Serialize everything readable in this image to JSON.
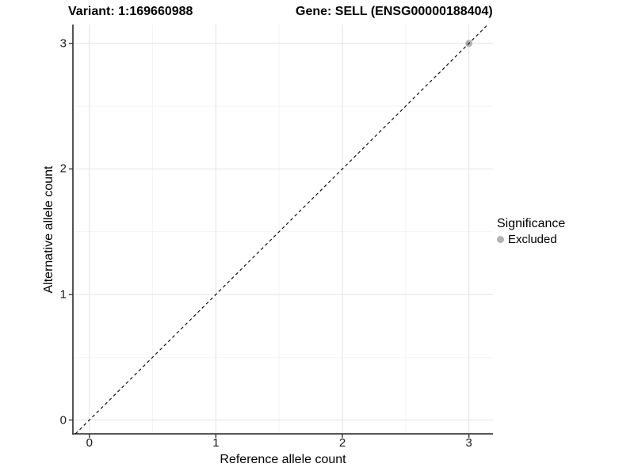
{
  "header": {
    "title_left": "Variant: 1:169660988",
    "title_right": "Gene: SELL (ENSG00000188404)"
  },
  "chart_data": {
    "type": "scatter",
    "title": "Variant: 1:169660988  /  Gene: SELL (ENSG00000188404)",
    "xlabel": "Reference allele count",
    "ylabel": "Alternative allele count",
    "xlim": [
      -0.13,
      3.19
    ],
    "ylim": [
      -0.11,
      3.15
    ],
    "x_ticks": [
      0,
      1,
      2,
      3
    ],
    "y_ticks": [
      0,
      1,
      2,
      3
    ],
    "x_minor_ticks": [
      0.5,
      1.5,
      2.5
    ],
    "y_minor_ticks": [
      0.5,
      1.5,
      2.5
    ],
    "grid": true,
    "identity_line": {
      "slope": 1,
      "intercept": 0,
      "style": "dashed",
      "color": "#000000"
    },
    "series": [
      {
        "name": "Excluded",
        "color": "#b3b3b3",
        "points": [
          {
            "x": 3,
            "y": 3
          }
        ]
      }
    ],
    "legend": {
      "title": "Significance",
      "position": "right",
      "entries": [
        {
          "label": "Excluded",
          "color": "#b3b3b3"
        }
      ]
    }
  }
}
